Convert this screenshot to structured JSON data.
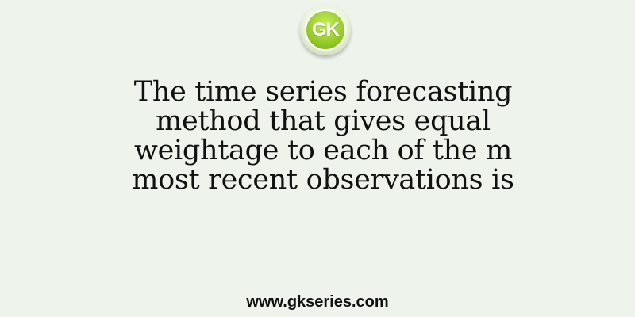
{
  "logo": {
    "text": "GK",
    "color": "#8cc321"
  },
  "question": {
    "lines": [
      "The time series forecasting",
      "method that gives equal",
      "weightage to each of the m",
      "most recent observations is"
    ]
  },
  "footer": {
    "website": "www.gkseries.com"
  }
}
